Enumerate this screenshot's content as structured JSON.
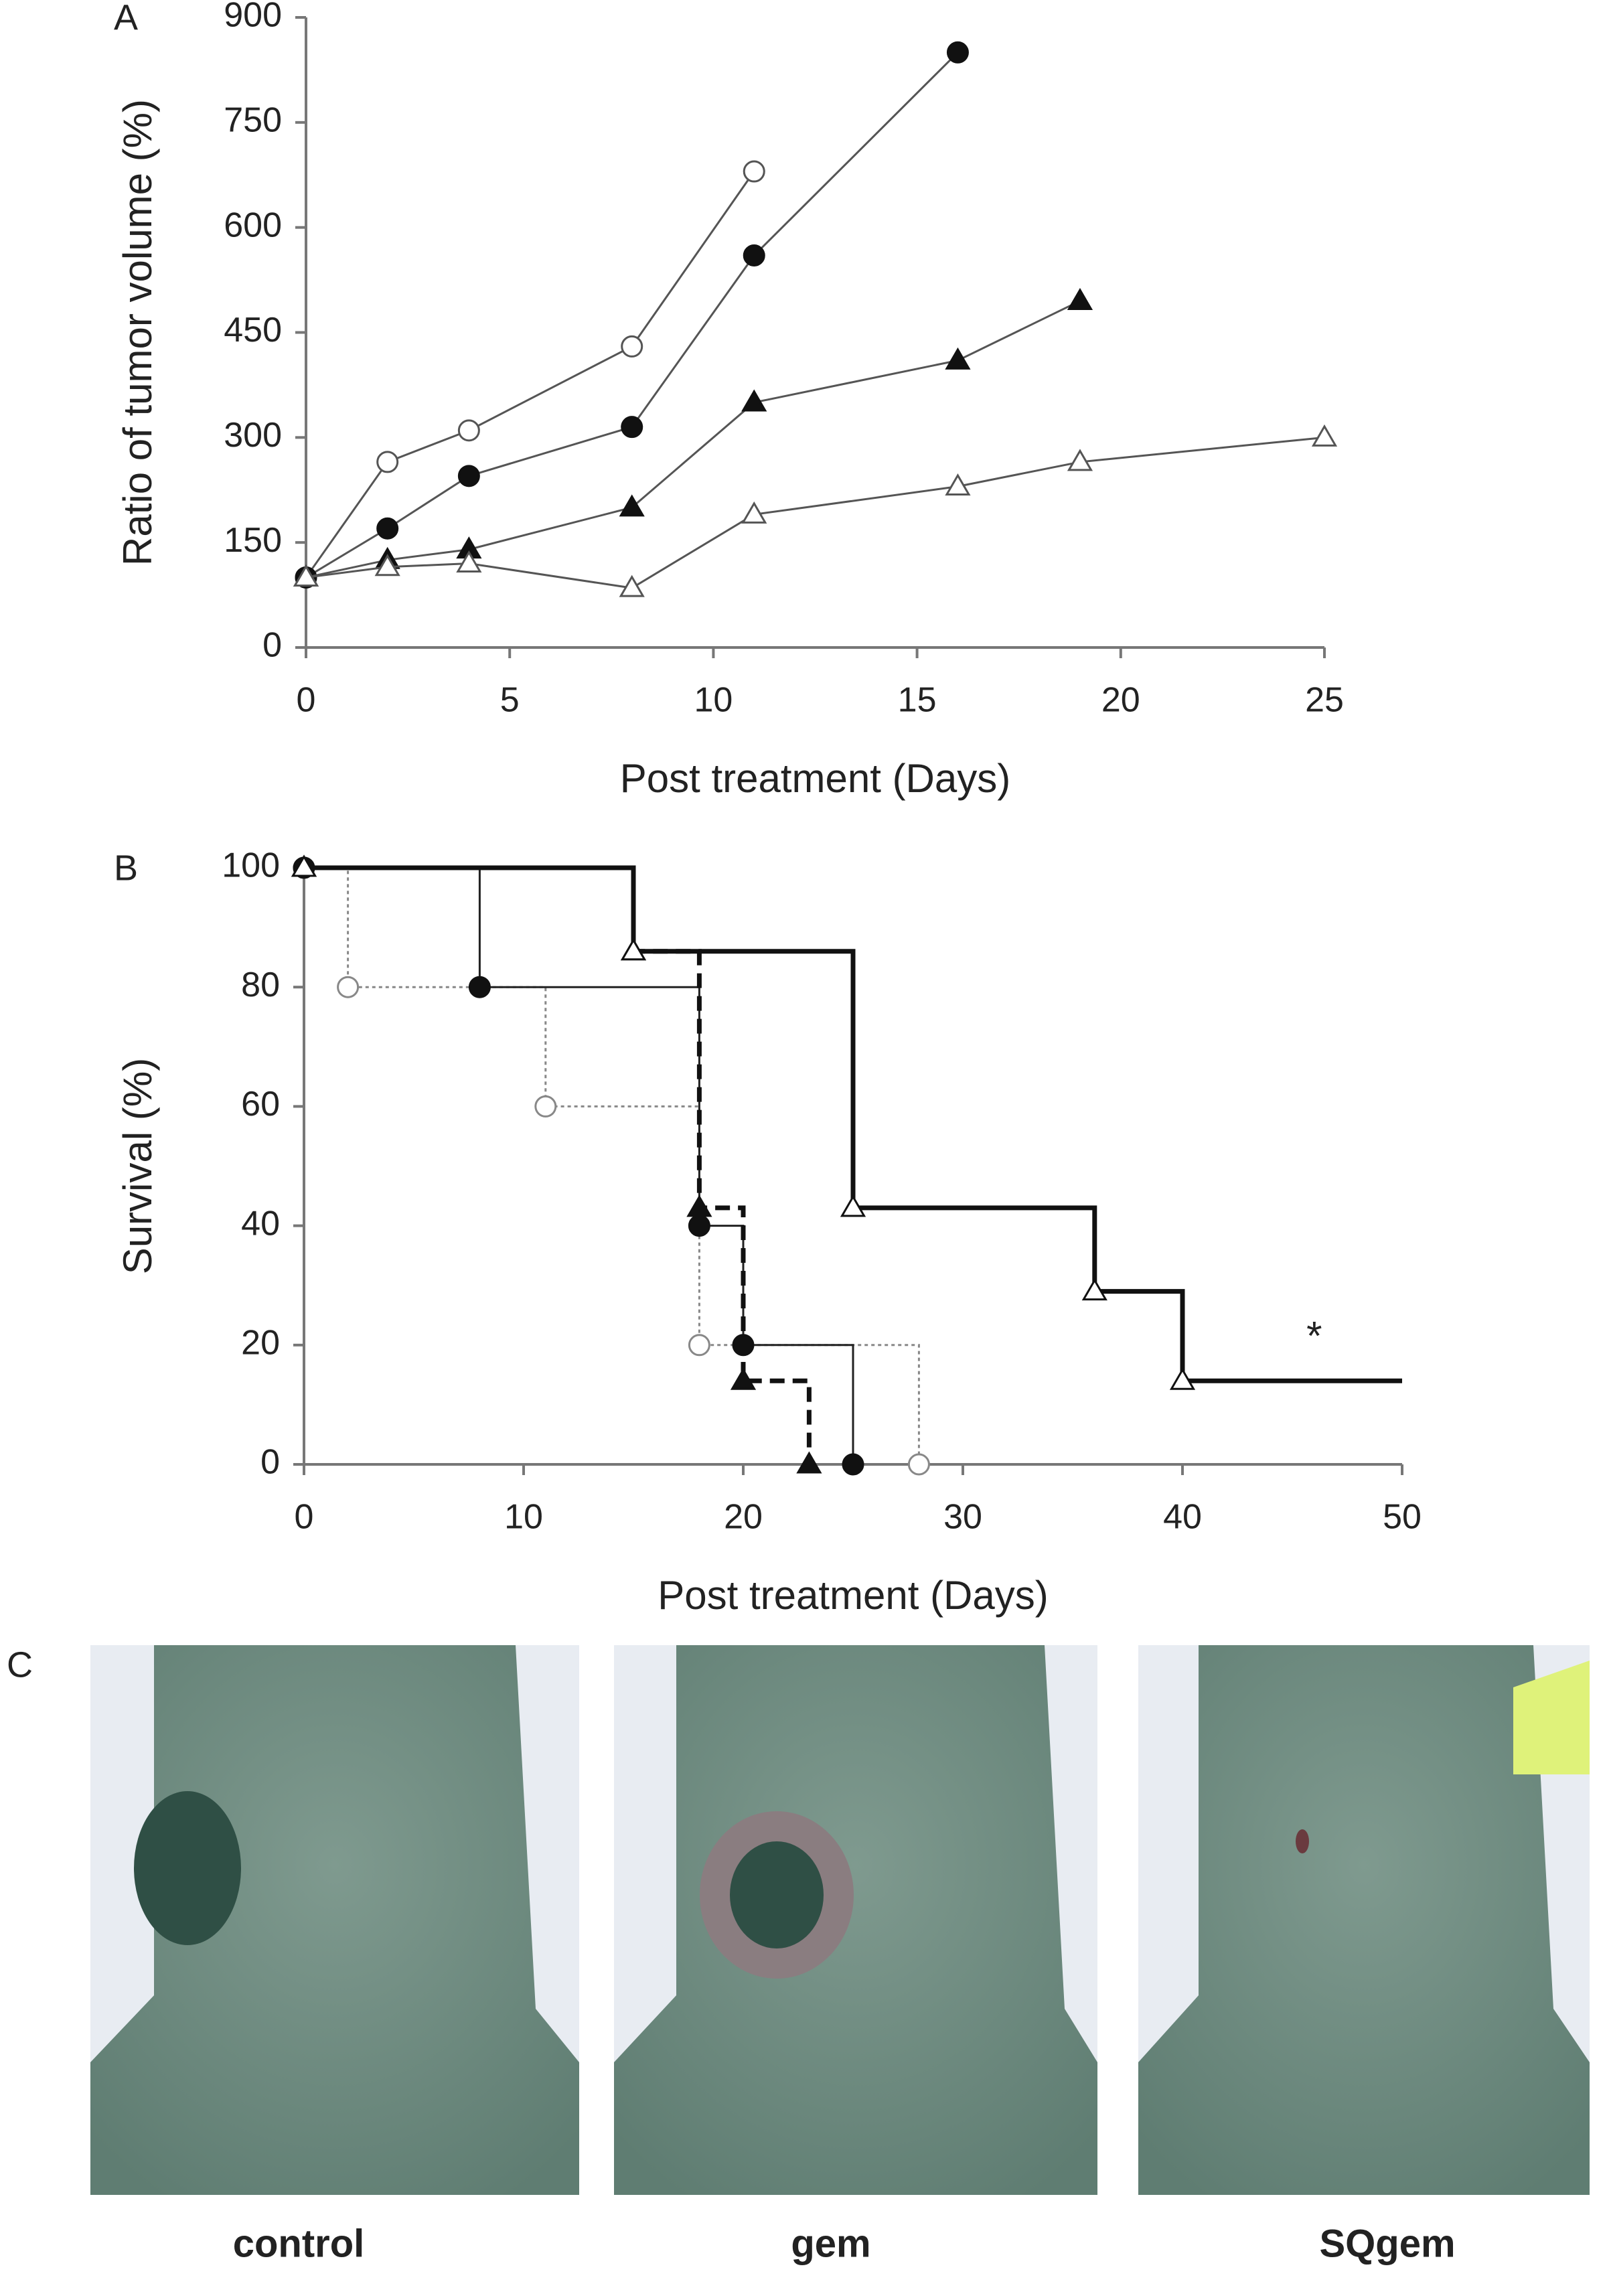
{
  "chart_data": [
    {
      "type": "line",
      "panel_label": "A",
      "x_label": "Post treatment (Days)",
      "y_label": "Ratio of tumor volume (%)",
      "xlim": [
        0,
        25
      ],
      "xticks": [
        0,
        5,
        10,
        15,
        20,
        25
      ],
      "ylim": [
        0,
        900
      ],
      "yticks": [
        0,
        150,
        300,
        450,
        600,
        750,
        900
      ],
      "series": [
        {
          "marker": "open-circle",
          "color": "#555555",
          "line_style": "solid",
          "x": [
            0,
            2,
            4,
            8,
            11
          ],
          "values": [
            100,
            265,
            310,
            430,
            680
          ]
        },
        {
          "marker": "filled-circle",
          "color": "#555555",
          "line_style": "solid",
          "x": [
            0,
            2,
            4,
            8,
            11,
            16
          ],
          "values": [
            100,
            170,
            245,
            315,
            560,
            850
          ]
        },
        {
          "marker": "filled-triangle",
          "color": "#555555",
          "line_style": "solid",
          "x": [
            0,
            2,
            4,
            8,
            11,
            16,
            19
          ],
          "values": [
            100,
            125,
            140,
            200,
            350,
            410,
            495
          ]
        },
        {
          "marker": "open-triangle",
          "color": "#555555",
          "line_style": "solid",
          "x": [
            0,
            2,
            4,
            8,
            11,
            16,
            19,
            25
          ],
          "values": [
            100,
            115,
            120,
            85,
            190,
            230,
            265,
            300
          ]
        }
      ]
    },
    {
      "type": "step",
      "panel_label": "B",
      "x_label": "Post treatment (Days)",
      "y_label": "Survival (%)",
      "xlim": [
        0,
        50
      ],
      "xticks": [
        0,
        10,
        20,
        30,
        40,
        50
      ],
      "ylim": [
        0,
        100
      ],
      "yticks": [
        0,
        20,
        40,
        60,
        80,
        100
      ],
      "annotation": {
        "text": "*",
        "x": 46,
        "y": 21
      },
      "series": [
        {
          "marker": "open-circle",
          "color": "#888888",
          "line_style": "dotted",
          "x": [
            0,
            2,
            11,
            18,
            28
          ],
          "values": [
            100,
            80,
            60,
            20,
            0
          ]
        },
        {
          "marker": "filled-circle",
          "color": "#222222",
          "line_style": "solid",
          "x": [
            0,
            8,
            18,
            20,
            25
          ],
          "values": [
            100,
            80,
            40,
            20,
            0
          ]
        },
        {
          "marker": "filled-triangle",
          "color": "#111111",
          "line_style": "dashed-thick",
          "x": [
            0,
            15,
            18,
            20,
            23
          ],
          "values": [
            100,
            86,
            43,
            14,
            0
          ]
        },
        {
          "marker": "open-triangle",
          "color": "#111111",
          "line_style": "solid-thick",
          "x": [
            0,
            15,
            25,
            36,
            40
          ],
          "values": [
            100,
            86,
            43,
            29,
            14
          ],
          "end_x": 50
        }
      ]
    }
  ],
  "panel_c": {
    "panel_label": "C",
    "captions": [
      "control",
      "gem",
      "SQgem"
    ]
  }
}
